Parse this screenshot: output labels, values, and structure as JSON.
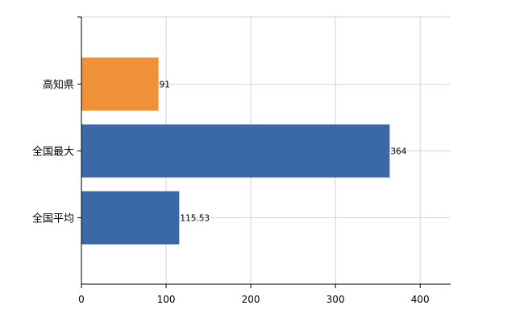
{
  "chart_data": {
    "type": "bar",
    "orientation": "horizontal",
    "title": "",
    "xlabel": "",
    "ylabel": "",
    "categories": [
      "高知県",
      "全国最大",
      "全国平均"
    ],
    "values": [
      91,
      364,
      115.53
    ],
    "data_labels": [
      "91",
      "364",
      "115.53"
    ],
    "bar_colors": [
      "#f0913a",
      "#3b69a8",
      "#3b69a8"
    ],
    "xlim": [
      0,
      436
    ],
    "x_ticks": [
      0,
      100,
      200,
      300,
      400
    ],
    "x_tick_labels": [
      "0",
      "100",
      "200",
      "300",
      "400"
    ],
    "grid": true,
    "legend": "none"
  }
}
